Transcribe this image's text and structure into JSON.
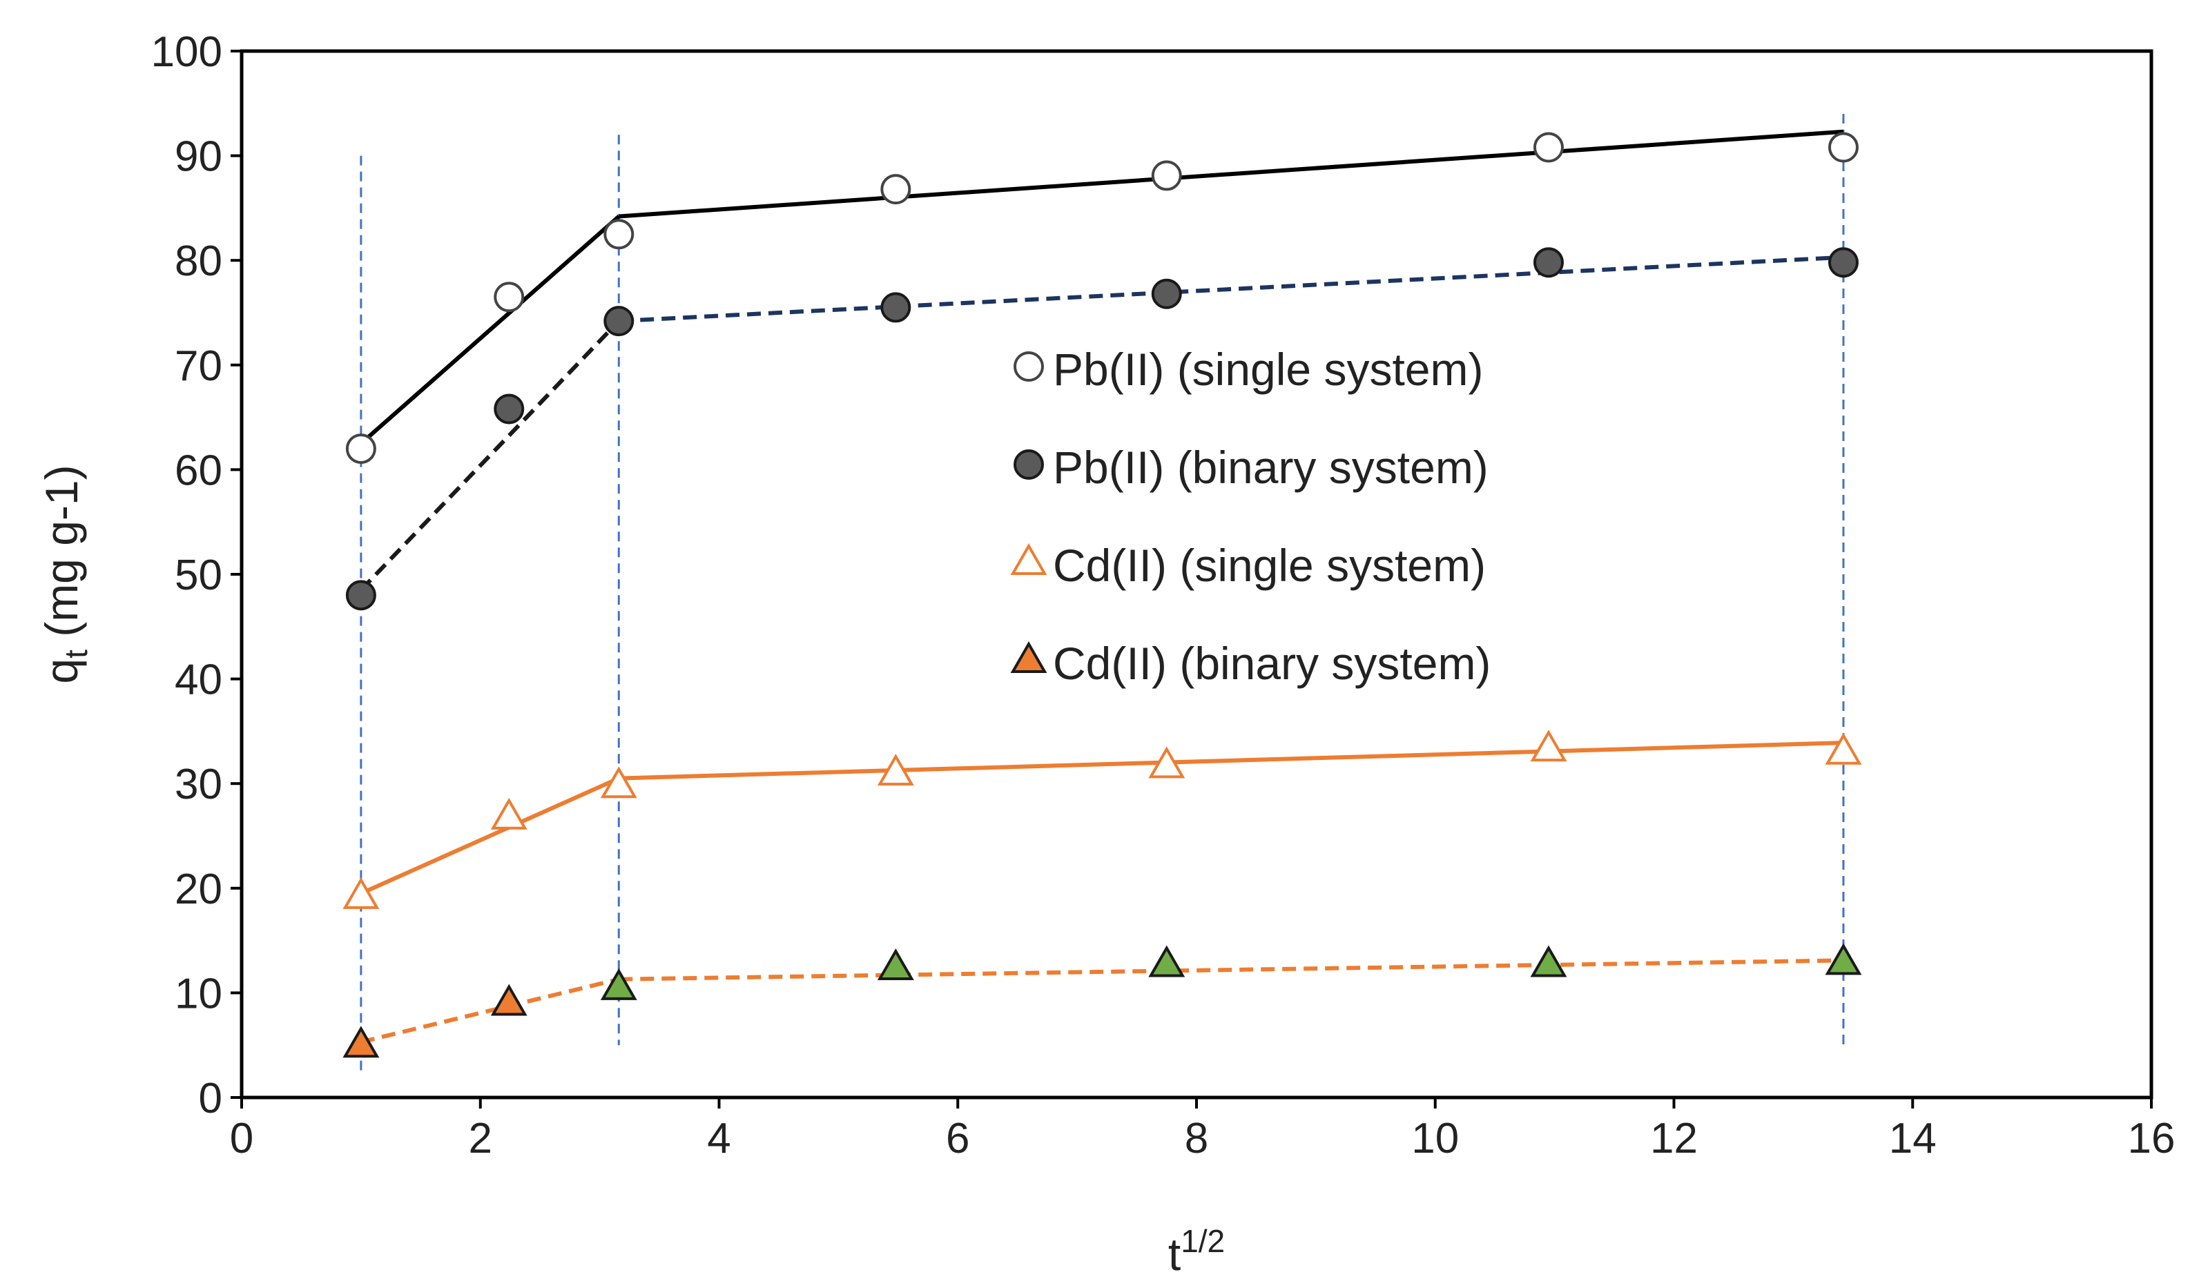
{
  "chart_data": {
    "type": "scatter",
    "title": "",
    "xlabel": {
      "base": "t",
      "sup": "1/2"
    },
    "ylabel": {
      "base": "q",
      "sub": "t",
      "rest": " (mg g-1)"
    },
    "xlim": [
      0,
      16
    ],
    "ylim": [
      0,
      100
    ],
    "xticks": [
      0,
      2,
      4,
      6,
      8,
      10,
      12,
      14,
      16
    ],
    "yticks": [
      0,
      10,
      20,
      30,
      40,
      50,
      60,
      70,
      80,
      90,
      100
    ],
    "grid": false,
    "legend_position": "center-right",
    "x": [
      1.0,
      2.24,
      3.16,
      5.48,
      7.75,
      10.95,
      13.42
    ],
    "series": [
      {
        "name": "Pb(II) (single system)",
        "marker": "circle-open",
        "color": "#444444",
        "values": [
          62,
          76.5,
          82.5,
          86.8,
          88.1,
          90.8,
          90.8
        ],
        "fit_lines": [
          {
            "style": "solid",
            "color": "#000000",
            "x": [
              1.0,
              3.16
            ],
            "y": [
              62.5,
              84.2
            ]
          },
          {
            "style": "solid",
            "color": "#000000",
            "x": [
              3.16,
              13.42
            ],
            "y": [
              84.2,
              92.3
            ]
          }
        ]
      },
      {
        "name": "Pb(II) (binary system)",
        "marker": "circle-filled",
        "color": "#5a5a5a",
        "values": [
          48,
          65.8,
          74.2,
          75.5,
          76.8,
          79.8,
          79.8
        ],
        "fit_lines": [
          {
            "style": "dashed",
            "color": "#1a1a1a",
            "x": [
              1.0,
              3.16
            ],
            "y": [
              48.5,
              74.2
            ]
          },
          {
            "style": "dashed",
            "color": "#1c3560",
            "x": [
              3.16,
              13.42
            ],
            "y": [
              74.2,
              80.3
            ]
          }
        ]
      },
      {
        "name": "Cd(II) (single system)",
        "marker": "triangle-open",
        "color": "#ed7d31",
        "values": [
          19.2,
          26.8,
          29.8,
          31.0,
          31.7,
          33.3,
          33.0
        ],
        "fit_lines": [
          {
            "style": "solid",
            "color": "#ed7d31",
            "x": [
              1.0,
              3.16
            ],
            "y": [
              19.5,
              30.5
            ]
          },
          {
            "style": "solid",
            "color": "#ed7d31",
            "x": [
              3.16,
              13.42
            ],
            "y": [
              30.5,
              33.9
            ]
          }
        ]
      },
      {
        "name": "Cd(II) (binary system)",
        "marker": "triangle-filled",
        "color": "#ed7d31",
        "point_colors": [
          "#ed7d31",
          "#ed7d31",
          "#70ad47",
          "#70ad47",
          "#70ad47",
          "#70ad47",
          "#70ad47"
        ],
        "values": [
          5.0,
          9.0,
          10.5,
          12.4,
          12.7,
          12.7,
          12.9
        ],
        "fit_lines": [
          {
            "style": "dashed",
            "color": "#ed7d31",
            "x": [
              1.0,
              3.16
            ],
            "y": [
              5.3,
              11.3
            ]
          },
          {
            "style": "dashed",
            "color": "#ed7d31",
            "x": [
              3.16,
              13.42
            ],
            "y": [
              11.3,
              13.1
            ]
          }
        ]
      }
    ],
    "reference_lines": [
      {
        "orientation": "vertical",
        "x": 1.0,
        "y_range": [
          2,
          90
        ],
        "color": "#4472c4",
        "style": "dashed"
      },
      {
        "orientation": "vertical",
        "x": 3.16,
        "y_range": [
          5,
          92
        ],
        "color": "#4472c4",
        "style": "dashed"
      },
      {
        "orientation": "vertical",
        "x": 13.42,
        "y_range": [
          5,
          94
        ],
        "color": "#4472c4",
        "style": "dashed"
      }
    ]
  }
}
